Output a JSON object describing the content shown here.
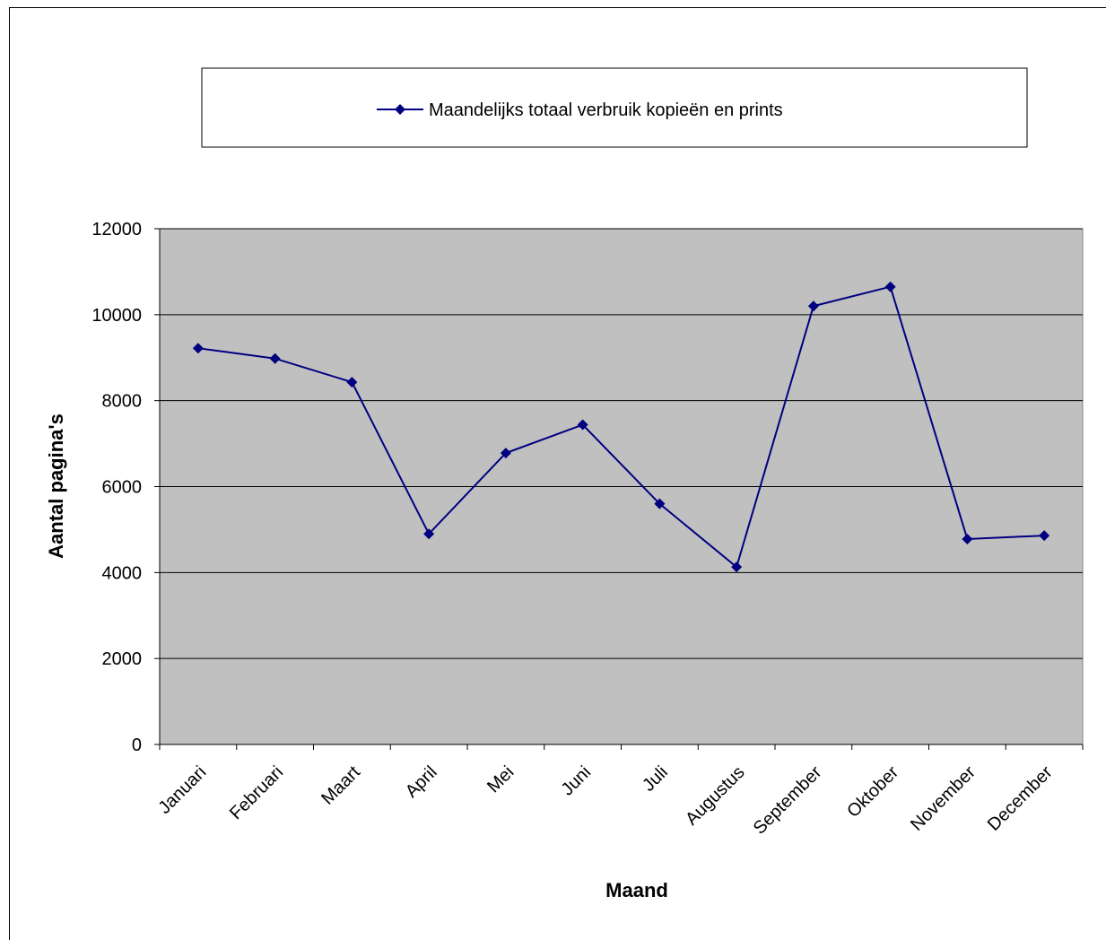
{
  "chart_data": {
    "type": "line",
    "title": "",
    "xlabel": "Maand",
    "ylabel": "Aantal pagina's",
    "categories": [
      "Januari",
      "Februari",
      "Maart",
      "April",
      "Mei",
      "Juni",
      "Juli",
      "Augustus",
      "September",
      "Oktober",
      "November",
      "December"
    ],
    "series": [
      {
        "name": "Maandelijks totaal verbruik kopieën en prints",
        "values": [
          9220,
          8980,
          8430,
          4900,
          6780,
          7440,
          5600,
          4130,
          10200,
          10650,
          4780,
          4860
        ]
      }
    ],
    "yticks": [
      0,
      2000,
      4000,
      6000,
      8000,
      10000,
      12000
    ],
    "ylim": [
      0,
      12000
    ],
    "grid": true,
    "legend_position": "top",
    "colors": {
      "series": "#000080",
      "plot_background": "#c0c0c0",
      "gridline": "#000000"
    },
    "marker": "diamond"
  }
}
